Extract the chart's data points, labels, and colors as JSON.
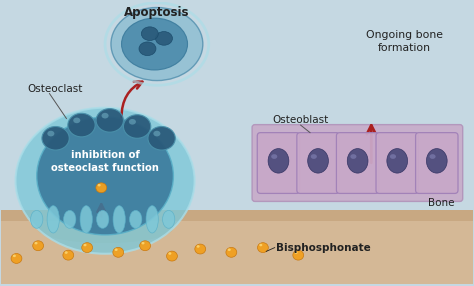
{
  "background_color": "#c5d8e2",
  "bone_color": "#d4b896",
  "bone_top_color": "#c8a882",
  "osteoclast_outer_color": "#7ec8d8",
  "osteoclast_inner_color": "#3a7a9c",
  "osteoclast_cell_color": "#2a5a7a",
  "apoptosis_outer_color": "#88bbd0",
  "apoptosis_color": "#4a8aaa",
  "apoptosis_nucleus_color": "#2a5a7a",
  "osteoblast_outer_color": "#c8a8c8",
  "osteoblast_inner_color": "#7a6a9a",
  "osteoblast_nucleus_color": "#4a4a7a",
  "bisphosphonate_color": "#f0a020",
  "bisphosphonate_shine": "#ffe080",
  "arrow_color": "#aa2020",
  "text_color": "#222222",
  "inhibition_text_color": "#ffffff",
  "label_osteoclast": "Osteoclast",
  "label_osteoblast": "Osteoblast",
  "label_apoptosis": "Apoptosis",
  "label_inhibition": "inhibition of\nosteoclast function",
  "label_ongoing": "Ongoing bone\nformation",
  "label_bisphosphonate": "Bisphosphonate",
  "label_bone": "Bone",
  "fig_width": 4.74,
  "fig_height": 2.86,
  "dpi": 100
}
